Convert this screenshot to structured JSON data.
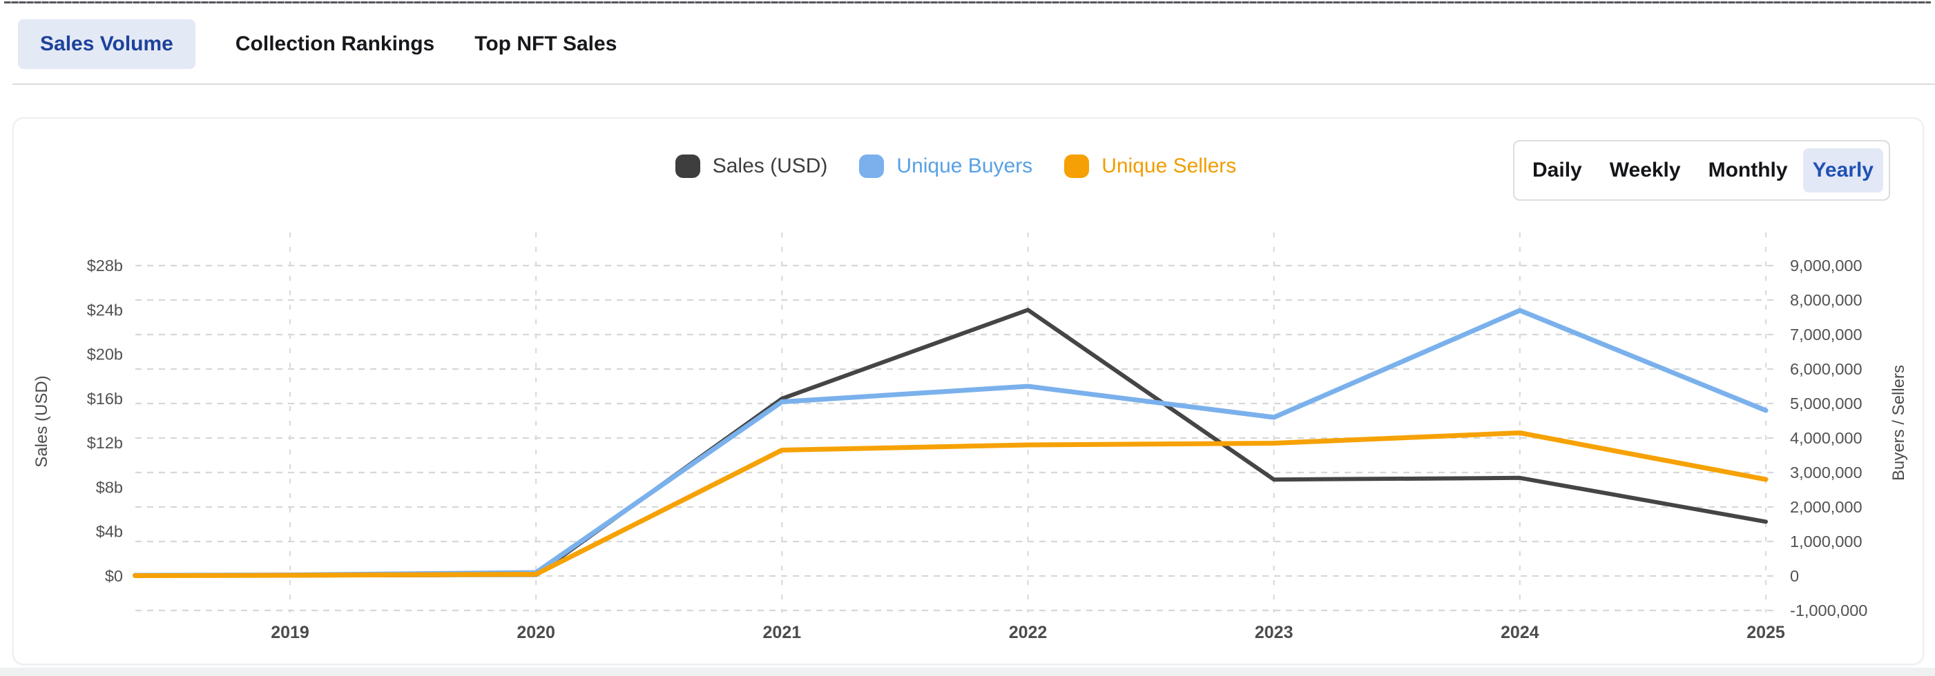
{
  "tabs": {
    "items": [
      {
        "label": "Sales Volume",
        "active": true
      },
      {
        "label": "Collection Rankings",
        "active": false
      },
      {
        "label": "Top NFT Sales",
        "active": false
      }
    ],
    "active_text_color": "#1c429b",
    "active_bg_color": "#e4e9f6"
  },
  "legend": {
    "items": [
      {
        "label": "Sales (USD)",
        "swatch_color": "#3e3e3e",
        "text_color": "#3e3e3e"
      },
      {
        "label": "Unique Buyers",
        "swatch_color": "#7ab0ec",
        "text_color": "#58a0e4"
      },
      {
        "label": "Unique Sellers",
        "swatch_color": "#f5a004",
        "text_color": "#f09d00"
      }
    ]
  },
  "period_selector": {
    "options": [
      "Daily",
      "Weekly",
      "Monthly",
      "Yearly"
    ],
    "selected": "Yearly",
    "selected_bg": "#e3e8f6",
    "selected_text_color": "#2151b3"
  },
  "chart_data": {
    "type": "line",
    "x": [
      2018.37,
      2019,
      2020,
      2021,
      2022,
      2023,
      2024,
      2025
    ],
    "x_axis": {
      "tick_labels": [
        "2019",
        "2020",
        "2021",
        "2022",
        "2023",
        "2024",
        "2025"
      ],
      "tick_values": [
        2019,
        2020,
        2021,
        2022,
        2023,
        2024,
        2025
      ]
    },
    "left_axis": {
      "title": "Sales (USD)",
      "tick_labels": [
        "$0",
        "$4b",
        "$8b",
        "$12b",
        "$16b",
        "$20b",
        "$24b",
        "$28b"
      ],
      "tick_values_billions": [
        0,
        4,
        8,
        12,
        16,
        20,
        24,
        28
      ],
      "range_billions": [
        0,
        28
      ]
    },
    "right_axis": {
      "title": "Buyers / Sellers",
      "tick_labels": [
        "-1,000,000",
        "0",
        "1,000,000",
        "2,000,000",
        "3,000,000",
        "4,000,000",
        "5,000,000",
        "6,000,000",
        "7,000,000",
        "8,000,000",
        "9,000,000"
      ],
      "tick_values_millions": [
        -1,
        0,
        1,
        2,
        3,
        4,
        5,
        6,
        7,
        8,
        9
      ],
      "range_millions": [
        -1,
        9
      ]
    },
    "grid": {
      "horizontal": "dotted at right-axis ticks",
      "vertical": "dotted at year ticks"
    },
    "legend_position": "top-center",
    "series": [
      {
        "name": "Sales (USD)",
        "axis": "left",
        "unit": "billions USD",
        "color": "#454545",
        "values": [
          0.05,
          0.05,
          0.1,
          16.0,
          24.0,
          8.7,
          8.85,
          4.9
        ]
      },
      {
        "name": "Unique Buyers",
        "axis": "right",
        "unit": "millions",
        "color": "#7ab1ec",
        "values": [
          0.02,
          0.03,
          0.1,
          5.05,
          5.5,
          4.6,
          7.7,
          4.8
        ]
      },
      {
        "name": "Unique Sellers",
        "axis": "right",
        "unit": "millions",
        "color": "#f6a104",
        "values": [
          0.01,
          0.02,
          0.05,
          3.65,
          3.8,
          3.85,
          4.15,
          2.8
        ]
      }
    ]
  }
}
